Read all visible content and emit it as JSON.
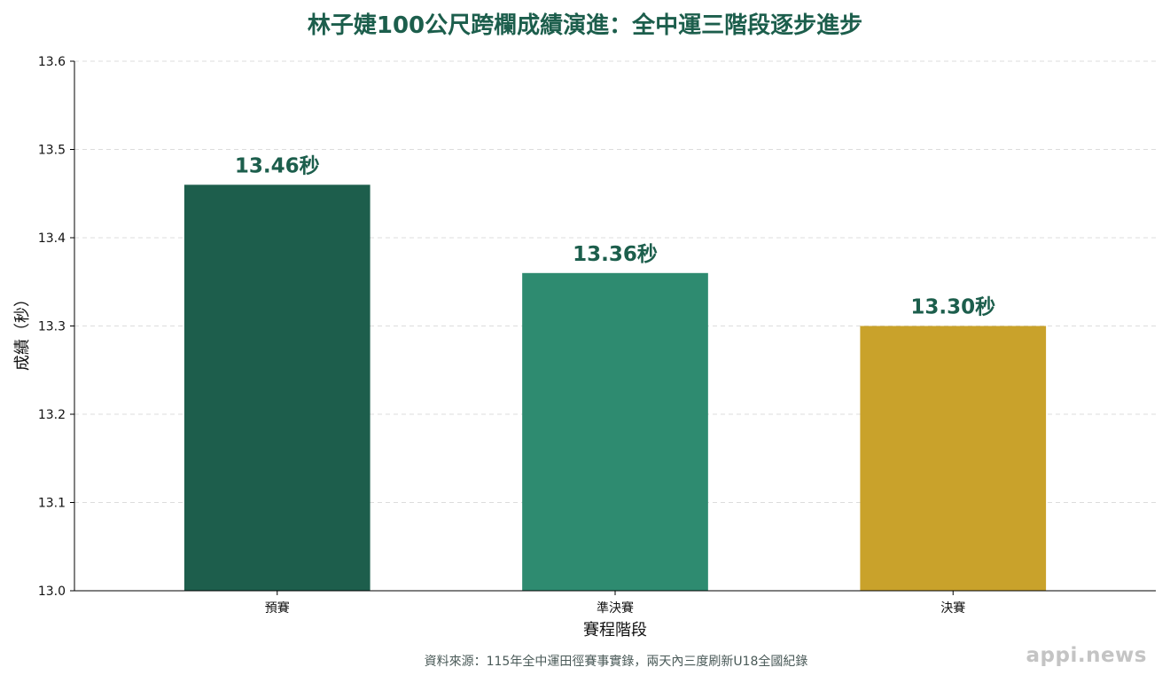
{
  "chart_title": "林子婕100公尺跨欄成績演進：全中運三階段逐步進步",
  "source_note": "資料來源：115年全中運田徑賽事實錄，兩天內三度刷新U18全國紀錄",
  "watermark": "appi.news",
  "chart_data": {
    "type": "bar",
    "title": "林子婕100公尺跨欄成績演進：全中運三階段逐步進步",
    "xlabel": "賽程階段",
    "ylabel": "成績（秒）",
    "categories": [
      "預賽",
      "準決賽",
      "決賽"
    ],
    "values": [
      13.46,
      13.36,
      13.3
    ],
    "data_labels": [
      "13.46秒",
      "13.36秒",
      "13.30秒"
    ],
    "bar_colors": [
      "#1d5e4c",
      "#2e8b70",
      "#c9a22b"
    ],
    "label_color": "#1c5e4c",
    "ylim": [
      13.0,
      13.6
    ],
    "yticks": [
      "13.0",
      "13.1",
      "13.2",
      "13.3",
      "13.4",
      "13.5",
      "13.6"
    ],
    "grid": "horizontal dashed",
    "legend": "none"
  }
}
